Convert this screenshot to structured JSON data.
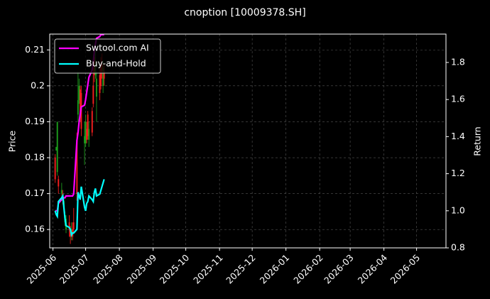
{
  "chart_data": {
    "type": "candlestick",
    "title": "cnoption [10009378.SH]",
    "ylabel": "Price",
    "y2label": "Return",
    "x": [
      "2025-06-03",
      "2025-06-04",
      "2025-06-05",
      "2025-06-06",
      "2025-06-09",
      "2025-06-10",
      "2025-06-11",
      "2025-06-12",
      "2025-06-13",
      "2025-06-16",
      "2025-06-17",
      "2025-06-18",
      "2025-06-19",
      "2025-06-20",
      "2025-06-23",
      "2025-06-24",
      "2025-06-25",
      "2025-06-26",
      "2025-06-27",
      "2025-06-30",
      "2025-07-01",
      "2025-07-02",
      "2025-07-03",
      "2025-07-04",
      "2025-07-07",
      "2025-07-08",
      "2025-07-09",
      "2025-07-10",
      "2025-07-11",
      "2025-07-14",
      "2025-07-15",
      "2025-07-16",
      "2025-07-17",
      "2025-07-18"
    ],
    "open": [
      0.174,
      0.183,
      0.19,
      0.172,
      0.171,
      0.168,
      0.168,
      0.164,
      0.163,
      0.16,
      0.158,
      0.16,
      0.158,
      0.16,
      0.17,
      0.196,
      0.2,
      0.192,
      0.188,
      0.186,
      0.19,
      0.185,
      0.186,
      0.188,
      0.187,
      0.195,
      0.203,
      0.206,
      0.202,
      0.198,
      0.2,
      0.204,
      0.205,
      0.202
    ],
    "high": [
      0.181,
      0.183,
      0.19,
      0.175,
      0.173,
      0.171,
      0.169,
      0.165,
      0.164,
      0.164,
      0.161,
      0.162,
      0.162,
      0.166,
      0.187,
      0.204,
      0.202,
      0.2,
      0.2,
      0.19,
      0.192,
      0.19,
      0.193,
      0.19,
      0.194,
      0.205,
      0.21,
      0.212,
      0.204,
      0.205,
      0.208,
      0.209,
      0.207,
      0.206
    ],
    "low": [
      0.173,
      0.182,
      0.175,
      0.17,
      0.169,
      0.167,
      0.165,
      0.161,
      0.159,
      0.158,
      0.156,
      0.157,
      0.157,
      0.159,
      0.168,
      0.19,
      0.195,
      0.19,
      0.186,
      0.178,
      0.183,
      0.184,
      0.185,
      0.183,
      0.186,
      0.194,
      0.201,
      0.202,
      0.19,
      0.196,
      0.199,
      0.202,
      0.198,
      0.2
    ],
    "close": [
      0.18,
      0.182,
      0.176,
      0.174,
      0.17,
      0.17,
      0.166,
      0.162,
      0.16,
      0.162,
      0.16,
      0.158,
      0.16,
      0.162,
      0.185,
      0.192,
      0.196,
      0.199,
      0.198,
      0.184,
      0.184,
      0.188,
      0.192,
      0.185,
      0.193,
      0.2,
      0.208,
      0.203,
      0.197,
      0.203,
      0.205,
      0.206,
      0.2,
      0.204
    ],
    "up_color": "#ff2020",
    "down_color": "#1fa31f",
    "series": [
      {
        "name": "Swtool.com AI",
        "color": "#ff00ff",
        "axis": "y2",
        "values": [
          1.0,
          1.0,
          1.0,
          1.04,
          1.06,
          1.07,
          1.07,
          1.07,
          1.08,
          1.08,
          1.08,
          1.08,
          1.08,
          1.09,
          1.38,
          1.42,
          1.48,
          1.52,
          1.56,
          1.57,
          1.6,
          1.64,
          1.68,
          1.72,
          1.76,
          1.8,
          1.86,
          1.9,
          1.93,
          1.94,
          1.95,
          1.95,
          1.95,
          1.95
        ]
      },
      {
        "name": "Buy-and-Hold",
        "color": "#00ffff",
        "axis": "y2",
        "values": [
          1.0,
          0.98,
          0.97,
          1.05,
          1.07,
          1.08,
          1.02,
          0.96,
          0.92,
          0.91,
          0.9,
          0.87,
          0.88,
          0.88,
          0.9,
          1.1,
          1.08,
          1.06,
          1.13,
          1.02,
          1.0,
          1.04,
          1.05,
          1.08,
          1.06,
          1.05,
          1.1,
          1.12,
          1.08,
          1.09,
          1.11,
          1.13,
          1.15,
          1.17
        ]
      }
    ],
    "xlim": [
      "2025-05-29",
      "2026-05-28"
    ],
    "xticks": [
      "2025-06",
      "2025-07",
      "2025-08",
      "2025-09",
      "2025-10",
      "2025-11",
      "2025-12",
      "2026-01",
      "2026-02",
      "2026-03",
      "2026-04",
      "2026-05"
    ],
    "ylim": [
      0.1549,
      0.2144
    ],
    "yticks": [
      0.16,
      0.17,
      0.18,
      0.19,
      0.2,
      0.21
    ],
    "y2lim": [
      0.8,
      1.953
    ],
    "y2ticks": [
      {
        "value": 0.8,
        "label": "0.8"
      },
      {
        "value": 1.0,
        "label": "1.0"
      },
      {
        "value": 1.2,
        "label": "1.2"
      },
      {
        "value": 1.4,
        "label": "1.4"
      },
      {
        "value": 1.6,
        "label": "1.6"
      },
      {
        "value": 1.8,
        "label": "1.8"
      }
    ],
    "grid": true,
    "legend": "upper left"
  }
}
